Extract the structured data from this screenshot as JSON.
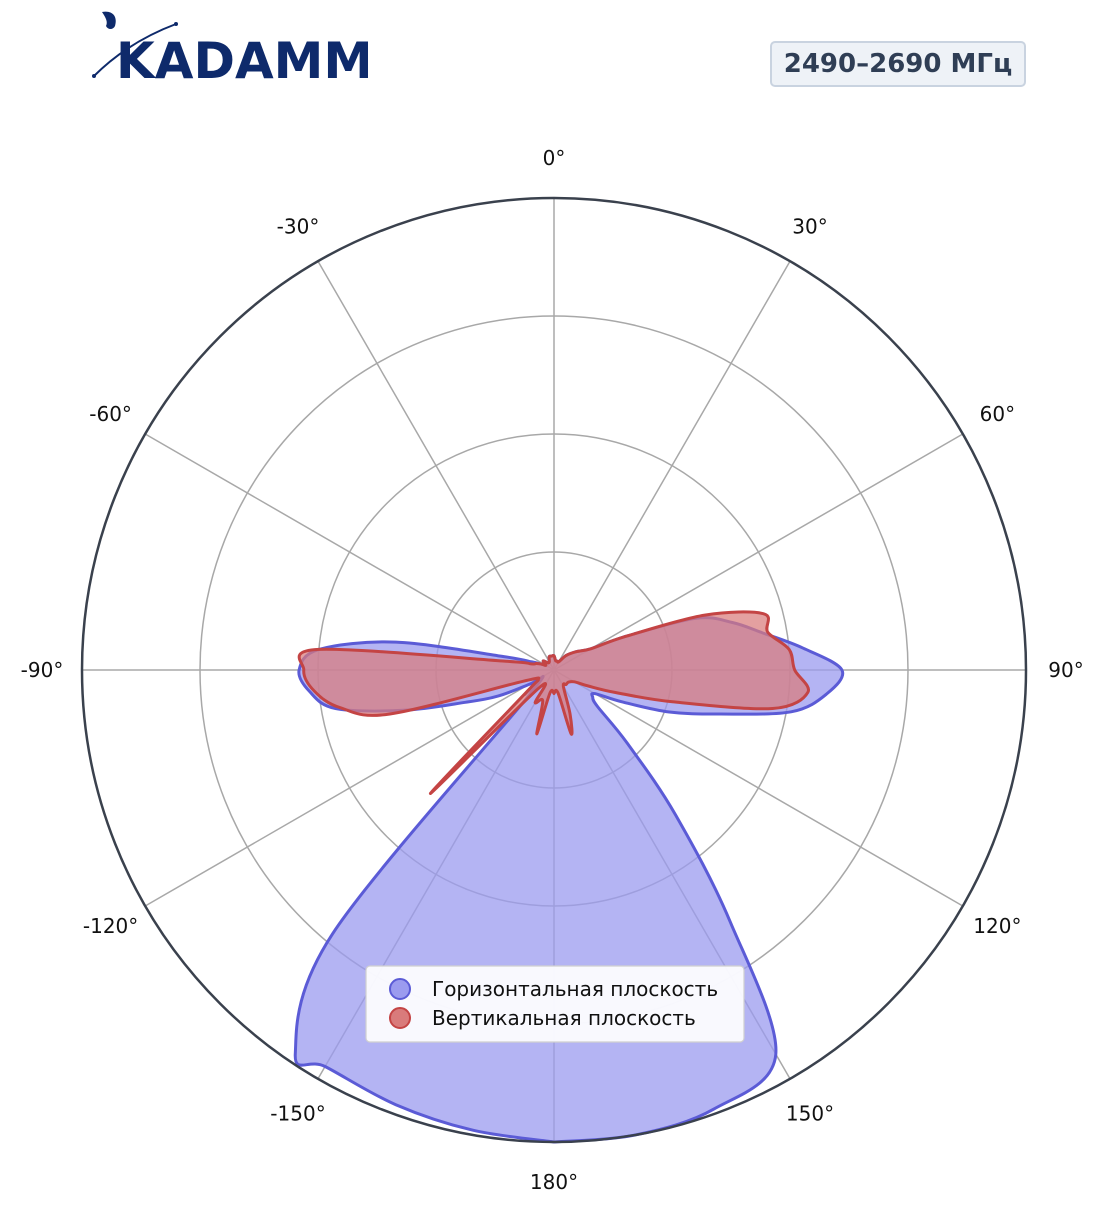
{
  "header": {
    "brand_name": "KADAMM",
    "frequency_label": "2490–2690 МГц"
  },
  "chart_data": {
    "type": "polar",
    "title": "",
    "theta_direction": "clockwise",
    "theta_zero": "top",
    "theta_ticks": [
      "0°",
      "30°",
      "60°",
      "90°",
      "120°",
      "150°",
      "180°",
      "-150°",
      "-120°",
      "-90°",
      "-60°",
      "-30°"
    ],
    "radial_rings": 4,
    "rlim": [
      0,
      1
    ],
    "grid": true,
    "legend_position": "lower-center",
    "series": [
      {
        "name": "Горизонтальная плоскость",
        "color": "#5b5bd6",
        "fill": "#9b9bef",
        "angles": [
          -180,
          -170,
          -160,
          -150,
          -146,
          -140,
          -135,
          -130,
          -125,
          -120,
          -115,
          -110,
          -105,
          -100,
          -95,
          -90,
          -85,
          -80,
          -75,
          -70,
          -65,
          -60,
          -50,
          -40,
          -30,
          -20,
          -10,
          0,
          10,
          20,
          30,
          40,
          50,
          60,
          65,
          70,
          75,
          80,
          85,
          90,
          95,
          100,
          105,
          110,
          115,
          120,
          125,
          130,
          135,
          140,
          145,
          150,
          160,
          170,
          180
        ],
        "values": [
          1.0,
          0.99,
          0.98,
          0.97,
          0.98,
          0.73,
          0.07,
          0.08,
          0.03,
          0.06,
          0.13,
          0.2,
          0.33,
          0.47,
          0.52,
          0.54,
          0.5,
          0.34,
          0.11,
          0.05,
          0.03,
          0.02,
          0.03,
          0.02,
          0.02,
          0.03,
          0.03,
          0.03,
          0.02,
          0.02,
          0.02,
          0.04,
          0.06,
          0.09,
          0.17,
          0.32,
          0.39,
          0.45,
          0.53,
          0.61,
          0.58,
          0.51,
          0.36,
          0.26,
          0.16,
          0.1,
          0.1,
          0.12,
          0.22,
          0.4,
          0.65,
          0.94,
          0.99,
          1.0,
          1.0
        ]
      },
      {
        "name": "Вертикальная плоскость",
        "color": "#c44444",
        "fill": "#d97b7b",
        "angles": [
          -180,
          -170,
          -165,
          -160,
          -150,
          -140,
          -135,
          -130,
          -125,
          -120,
          -110,
          -105,
          -100,
          -95,
          -90,
          -85,
          -80,
          -75,
          -70,
          -65,
          -60,
          -50,
          -40,
          -30,
          -20,
          -10,
          0,
          10,
          20,
          30,
          40,
          50,
          60,
          65,
          70,
          75,
          80,
          85,
          90,
          95,
          100,
          105,
          110,
          115,
          120,
          130,
          140,
          150,
          160,
          165,
          170,
          180
        ],
        "values": [
          0.05,
          0.05,
          0.14,
          0.07,
          0.08,
          0.05,
          0.37,
          0.09,
          0.05,
          0.04,
          0.07,
          0.36,
          0.46,
          0.51,
          0.53,
          0.5,
          0.11,
          0.05,
          0.04,
          0.03,
          0.02,
          0.03,
          0.02,
          0.02,
          0.03,
          0.03,
          0.03,
          0.02,
          0.02,
          0.02,
          0.04,
          0.06,
          0.09,
          0.17,
          0.34,
          0.46,
          0.46,
          0.5,
          0.51,
          0.54,
          0.47,
          0.26,
          0.14,
          0.08,
          0.05,
          0.04,
          0.04,
          0.04,
          0.1,
          0.14,
          0.05,
          0.05
        ]
      }
    ]
  }
}
